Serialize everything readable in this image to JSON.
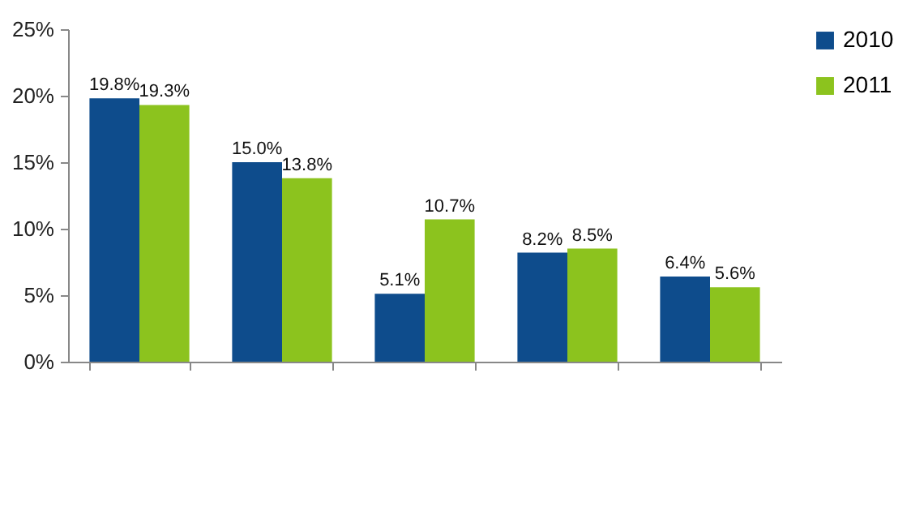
{
  "chart_data": {
    "type": "bar",
    "categories": [
      null,
      null,
      null,
      null,
      null
    ],
    "series": [
      {
        "name": "2010",
        "color": "#0e4c8c",
        "values": [
          19.8,
          15.0,
          5.1,
          8.2,
          6.4
        ],
        "value_labels": [
          "19.8%",
          "15.0%",
          "5.1%",
          "8.2%",
          "6.4%"
        ]
      },
      {
        "name": "2011",
        "color": "#8cc31e",
        "values": [
          19.3,
          13.8,
          10.7,
          8.5,
          5.6
        ],
        "value_labels": [
          "19.3%",
          "13.8%",
          "10.7%",
          "8.5%",
          "5.6%"
        ]
      }
    ],
    "ylim": [
      0,
      25
    ],
    "yticks": [
      {
        "value": 0,
        "label": "0%"
      },
      {
        "value": 5,
        "label": "5%"
      },
      {
        "value": 10,
        "label": "10%"
      },
      {
        "value": 15,
        "label": "15%"
      },
      {
        "value": 20,
        "label": "20%"
      },
      {
        "value": 25,
        "label": "25%"
      }
    ],
    "grid": false,
    "legend": "right"
  }
}
